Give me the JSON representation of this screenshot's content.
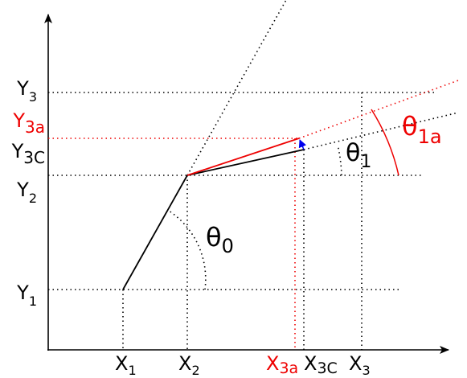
{
  "y_labels": [
    {
      "base": "Y",
      "sub": "3"
    },
    {
      "base": "Y",
      "sub": "3a"
    },
    {
      "base": "Y",
      "sub": "3C"
    },
    {
      "base": "Y",
      "sub": "2"
    },
    {
      "base": "Y",
      "sub": "1"
    }
  ],
  "x_labels": [
    {
      "base": "X",
      "sub": "1"
    },
    {
      "base": "X",
      "sub": "2"
    },
    {
      "base": "X",
      "sub": "3a"
    },
    {
      "base": "X",
      "sub": "3C"
    },
    {
      "base": "X",
      "sub": "3"
    }
  ],
  "angles": [
    {
      "base": "θ",
      "sub": "0"
    },
    {
      "base": "θ",
      "sub": "1"
    },
    {
      "base": "θ",
      "sub": "1a"
    }
  ]
}
